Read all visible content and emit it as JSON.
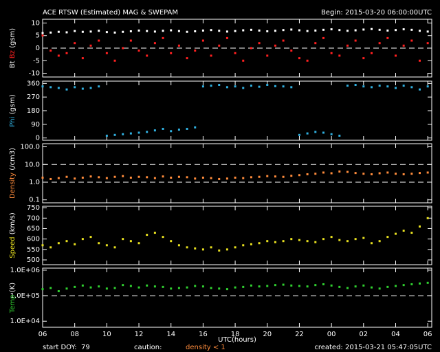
{
  "header": {
    "title": "ACE RTSW (Estimated) MAG & SWEPAM",
    "begin": "Begin: 2015-03-20 06:00:00UTC"
  },
  "x_axis": {
    "label": "UTC(hours)",
    "xlim": [
      0,
      24.25
    ],
    "xticks": [
      {
        "value": 0,
        "label": "06"
      },
      {
        "value": 2,
        "label": "08"
      },
      {
        "value": 4,
        "label": "10"
      },
      {
        "value": 6,
        "label": "12"
      },
      {
        "value": 8,
        "label": "14"
      },
      {
        "value": 10,
        "label": "16"
      },
      {
        "value": 12,
        "label": "18"
      },
      {
        "value": 14,
        "label": "20"
      },
      {
        "value": 16,
        "label": "22"
      },
      {
        "value": 18,
        "label": "00"
      },
      {
        "value": 20,
        "label": "02"
      },
      {
        "value": 22,
        "label": "04"
      },
      {
        "value": 24,
        "label": "06"
      }
    ]
  },
  "footer": {
    "start_doy_label": "start DOY:",
    "start_doy": 79,
    "caution": "caution:",
    "caution_note": "density < 1",
    "created": "created: 2015-03-21 05:47:05UTC"
  },
  "chart_data": [
    {
      "type": "scatter",
      "ylabel": "(gsm)",
      "ylim": [
        -11.5,
        11.5
      ],
      "yticks": [
        10,
        5,
        0,
        -5,
        -10
      ],
      "ref_lines": [
        0
      ],
      "x": [
        0,
        0.5,
        1,
        1.5,
        2,
        2.5,
        3,
        3.5,
        4,
        4.5,
        5,
        5.5,
        6,
        6.5,
        7,
        7.5,
        8,
        8.5,
        9,
        9.5,
        10,
        10.5,
        11,
        11.5,
        12,
        12.5,
        13,
        13.5,
        14,
        14.5,
        15,
        15.5,
        16,
        16.5,
        17,
        17.5,
        18,
        18.5,
        19,
        19.5,
        20,
        20.5,
        21,
        21.5,
        22,
        22.5,
        23,
        23.5,
        24
      ],
      "series": [
        {
          "name": "Bt",
          "color": "#ffffff",
          "values": [
            6,
            6.2,
            6.5,
            6.3,
            6.8,
            6.5,
            6.6,
            6.9,
            6.4,
            6.2,
            6.5,
            6.7,
            7,
            6.8,
            6.6,
            6.9,
            7.1,
            6.8,
            6.5,
            6.7,
            7,
            7.2,
            6.9,
            6.6,
            6.8,
            7.1,
            7.3,
            7,
            6.7,
            6.9,
            7.2,
            7.4,
            7.1,
            6.8,
            7,
            7.3,
            7.5,
            7.2,
            6.9,
            7.1,
            7.4,
            7.6,
            7.3,
            7,
            7.2,
            7.5,
            7.3,
            6.9,
            6.6
          ]
        },
        {
          "name": "Bz",
          "color": "#ff2020",
          "values": [
            5,
            -1,
            -3,
            -2,
            2,
            -4,
            1,
            3,
            -2,
            -5,
            0,
            3,
            -1,
            -3,
            2,
            4,
            -2,
            1,
            -4,
            -1,
            3,
            -3,
            1,
            4,
            -2,
            -5,
            0,
            2,
            -3,
            1,
            3,
            -1,
            -4,
            -5,
            2,
            4,
            -2,
            -3,
            1,
            3,
            -4,
            -2,
            2,
            4,
            -3,
            1,
            3,
            -5,
            2
          ]
        }
      ]
    },
    {
      "type": "scatter",
      "ylabel": "(gsm)",
      "ylim": [
        -15,
        375
      ],
      "yticks": [
        360,
        270,
        180,
        90,
        0
      ],
      "ref_lines": [],
      "x": [
        0,
        0.5,
        1,
        1.5,
        2,
        2.5,
        3,
        3.5,
        4,
        4.5,
        5,
        5.5,
        6,
        6.5,
        7,
        7.5,
        8,
        8.5,
        9,
        9.5,
        10,
        10.5,
        11,
        11.5,
        12,
        12.5,
        13,
        13.5,
        14,
        14.5,
        15,
        15.5,
        16,
        16.5,
        17,
        17.5,
        18,
        18.5,
        19,
        19.5,
        20,
        20.5,
        21,
        21.5,
        22,
        22.5,
        23,
        23.5,
        24
      ],
      "series": [
        {
          "name": "Phi",
          "color": "#30b0e0",
          "values": [
            340,
            335,
            330,
            320,
            335,
            325,
            330,
            340,
            15,
            20,
            25,
            30,
            35,
            40,
            50,
            60,
            45,
            55,
            60,
            70,
            340,
            345,
            350,
            335,
            340,
            330,
            345,
            338,
            350,
            342,
            340,
            335,
            20,
            30,
            40,
            35,
            25,
            15,
            345,
            350,
            340,
            335,
            345,
            340,
            330,
            345,
            335,
            320,
            340
          ]
        }
      ]
    },
    {
      "type": "scatter",
      "ylabel": "(/cm3)",
      "log": true,
      "ylim": [
        0.068,
        150
      ],
      "yticks": [
        {
          "value": 100,
          "label": "100.0"
        },
        {
          "value": 10,
          "label": "10.0"
        },
        {
          "value": 1,
          "label": "1.0"
        },
        0.1
      ],
      "ref_lines": [
        10,
        1
      ],
      "x": [
        0,
        0.5,
        1,
        1.5,
        2,
        2.5,
        3,
        3.5,
        4,
        4.5,
        5,
        5.5,
        6,
        6.5,
        7,
        7.5,
        8,
        8.5,
        9,
        9.5,
        10,
        10.5,
        11,
        11.5,
        12,
        12.5,
        13,
        13.5,
        14,
        14.5,
        15,
        15.5,
        16,
        16.5,
        17,
        17.5,
        18,
        18.5,
        19,
        19.5,
        20,
        20.5,
        21,
        21.5,
        22,
        22.5,
        23,
        23.5,
        24
      ],
      "series": [
        {
          "name": "Density",
          "color": "#ff8c3c",
          "values": [
            1.8,
            1.5,
            1.7,
            2,
            1.6,
            1.8,
            2.1,
            1.9,
            1.7,
            2,
            2.2,
            1.8,
            2,
            1.9,
            1.7,
            2.1,
            1.8,
            2,
            1.9,
            1.6,
            1.8,
            1.7,
            1.5,
            1.6,
            1.8,
            1.7,
            1.9,
            2,
            2.2,
            2.1,
            2,
            2.3,
            2.5,
            2.8,
            3,
            3.5,
            3.2,
            4,
            3.8,
            3.3,
            3,
            2.8,
            3.2,
            3.5,
            3,
            2.8,
            3,
            3.3,
            3.5
          ]
        }
      ]
    },
    {
      "type": "scatter",
      "ylabel": "(km/s)",
      "ylim": [
        477,
        757
      ],
      "yticks": [
        750,
        700,
        650,
        600,
        550,
        500
      ],
      "ref_lines": [],
      "x": [
        0,
        0.5,
        1,
        1.5,
        2,
        2.5,
        3,
        3.5,
        4,
        4.5,
        5,
        5.5,
        6,
        6.5,
        7,
        7.5,
        8,
        8.5,
        9,
        9.5,
        10,
        10.5,
        11,
        11.5,
        12,
        12.5,
        13,
        13.5,
        14,
        14.5,
        15,
        15.5,
        16,
        16.5,
        17,
        17.5,
        18,
        18.5,
        19,
        19.5,
        20,
        20.5,
        21,
        21.5,
        22,
        22.5,
        23,
        23.5,
        24
      ],
      "series": [
        {
          "name": "Speed",
          "color": "#e8e020",
          "values": [
            570,
            560,
            580,
            590,
            575,
            600,
            610,
            580,
            570,
            560,
            600,
            590,
            580,
            620,
            630,
            610,
            590,
            570,
            560,
            555,
            550,
            560,
            545,
            550,
            560,
            570,
            575,
            580,
            590,
            585,
            590,
            600,
            595,
            590,
            585,
            600,
            610,
            595,
            590,
            600,
            605,
            580,
            590,
            610,
            625,
            640,
            630,
            660,
            700
          ]
        }
      ]
    },
    {
      "type": "scatter",
      "ylabel": "(K)",
      "log": true,
      "ylim": [
        5800,
        1200000
      ],
      "yticks": [
        {
          "value": 1000000,
          "label": "1.0E+06"
        },
        {
          "value": 100000,
          "label": "1.0E+05"
        },
        {
          "value": 10000,
          "label": "1.0E+04"
        }
      ],
      "ref_lines": [
        100000
      ],
      "x": [
        0,
        0.5,
        1,
        1.5,
        2,
        2.5,
        3,
        3.5,
        4,
        4.5,
        5,
        5.5,
        6,
        6.5,
        7,
        7.5,
        8,
        8.5,
        9,
        9.5,
        10,
        10.5,
        11,
        11.5,
        12,
        12.5,
        13,
        13.5,
        14,
        14.5,
        15,
        15.5,
        16,
        16.5,
        17,
        17.5,
        18,
        18.5,
        19,
        19.5,
        20,
        20.5,
        21,
        21.5,
        22,
        22.5,
        23,
        23.5,
        24
      ],
      "series": [
        {
          "name": "Temp",
          "color": "#30d030",
          "values": [
            180000,
            200000,
            150000,
            190000,
            220000,
            250000,
            210000,
            230000,
            190000,
            200000,
            260000,
            240000,
            210000,
            250000,
            230000,
            220000,
            190000,
            200000,
            210000,
            240000,
            230000,
            200000,
            190000,
            180000,
            210000,
            220000,
            250000,
            230000,
            240000,
            260000,
            270000,
            250000,
            240000,
            230000,
            260000,
            280000,
            250000,
            220000,
            200000,
            230000,
            250000,
            210000,
            190000,
            220000,
            240000,
            260000,
            280000,
            300000,
            320000
          ]
        }
      ]
    }
  ]
}
